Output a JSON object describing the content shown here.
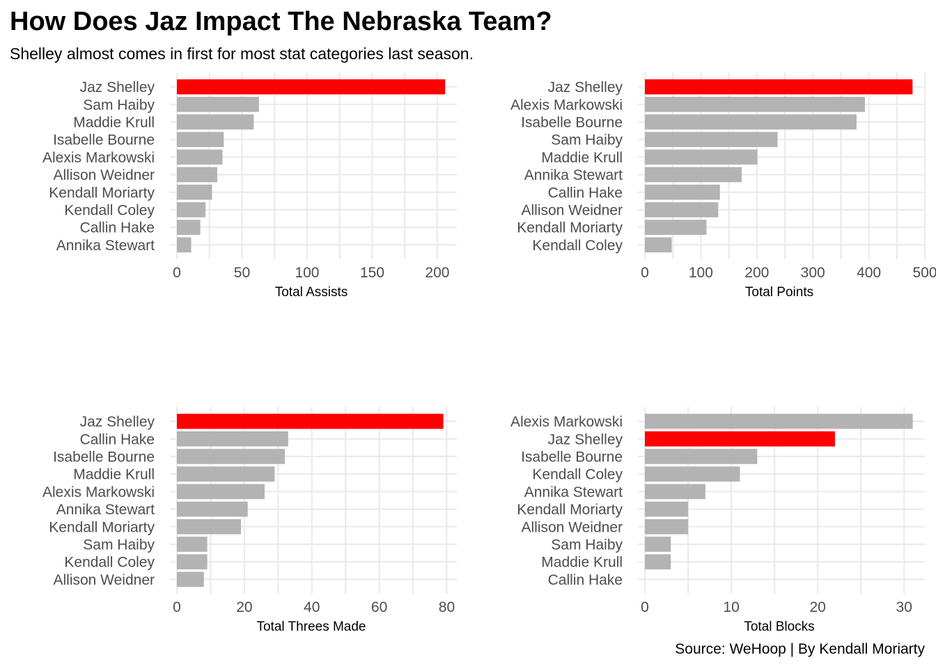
{
  "title": "How Does Jaz Impact The Nebraska Team?",
  "subtitle": "Shelley almost comes in first for most stat categories last season.",
  "caption": "Source: WeHoop | By Kendall Moriarty",
  "colors": {
    "highlight": "#ff0000",
    "other": "#b3b3b3",
    "grid": "#ebebeb"
  },
  "chart_data": [
    {
      "type": "bar",
      "orientation": "horizontal",
      "xlabel": "Total Assists",
      "xlim": [
        0,
        215
      ],
      "xticks": [
        0,
        50,
        100,
        150,
        200
      ],
      "highlight": "Jaz Shelley",
      "categories": [
        "Jaz Shelley",
        "Sam Haiby",
        "Maddie Krull",
        "Isabelle Bourne",
        "Alexis Markowski",
        "Allison Weidner",
        "Kendall Moriarty",
        "Kendall Coley",
        "Callin Hake",
        "Annika Stewart"
      ],
      "values": [
        206,
        63,
        59,
        36,
        35,
        31,
        27,
        22,
        18,
        11
      ]
    },
    {
      "type": "bar",
      "orientation": "horizontal",
      "xlabel": "Total Points",
      "xlim": [
        0,
        500
      ],
      "xticks": [
        0,
        100,
        200,
        300,
        400,
        500
      ],
      "highlight": "Jaz Shelley",
      "categories": [
        "Jaz Shelley",
        "Alexis Markowski",
        "Isabelle Bourne",
        "Sam Haiby",
        "Maddie Krull",
        "Annika Stewart",
        "Callin Hake",
        "Allison Weidner",
        "Kendall Moriarty",
        "Kendall Coley"
      ],
      "values": [
        478,
        393,
        378,
        237,
        201,
        173,
        134,
        131,
        110,
        48
      ]
    },
    {
      "type": "bar",
      "orientation": "horizontal",
      "xlabel": "Total Threes Made",
      "xlim": [
        0,
        83
      ],
      "xticks": [
        0,
        20,
        40,
        60,
        80
      ],
      "highlight": "Jaz Shelley",
      "categories": [
        "Jaz Shelley",
        "Callin Hake",
        "Isabelle Bourne",
        "Maddie Krull",
        "Alexis Markowski",
        "Annika Stewart",
        "Kendall Moriarty",
        "Sam Haiby",
        "Kendall Coley",
        "Allison Weidner"
      ],
      "values": [
        79,
        33,
        32,
        29,
        26,
        21,
        19,
        9,
        9,
        8
      ]
    },
    {
      "type": "bar",
      "orientation": "horizontal",
      "xlabel": "Total Blocks",
      "xlim": [
        0,
        32.4
      ],
      "xticks": [
        0,
        10,
        20,
        30
      ],
      "highlight": "Jaz Shelley",
      "categories": [
        "Alexis Markowski",
        "Jaz Shelley",
        "Isabelle Bourne",
        "Kendall Coley",
        "Annika Stewart",
        "Kendall Moriarty",
        "Allison Weidner",
        "Sam Haiby",
        "Maddie Krull",
        "Callin Hake"
      ],
      "values": [
        31,
        22,
        13,
        11,
        7,
        5,
        5,
        3,
        3,
        0
      ]
    }
  ]
}
